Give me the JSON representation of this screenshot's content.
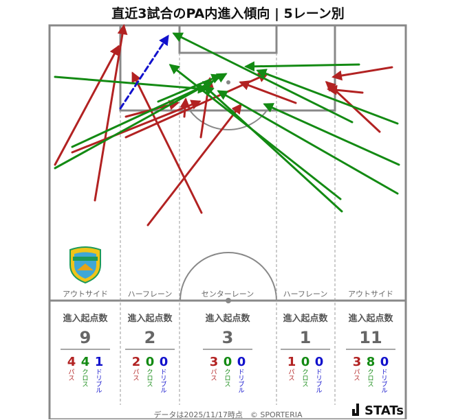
{
  "title": "直近3試合のPA内進入傾向 | 5レーン別",
  "colors": {
    "pass": "#b22222",
    "cross": "#138a13",
    "dribble": "#1111cc"
  },
  "lanes": [
    {
      "name": "アウトサイド",
      "label": "進入起点数",
      "total": "9",
      "pass": "4",
      "cross": "4",
      "dribble": "1"
    },
    {
      "name": "ハーフレーン",
      "label": "進入起点数",
      "total": "2",
      "pass": "2",
      "cross": "0",
      "dribble": "0"
    },
    {
      "name": "センターレーン",
      "label": "進入起点数",
      "total": "3",
      "pass": "3",
      "cross": "0",
      "dribble": "0"
    },
    {
      "name": "ハーフレーン",
      "label": "進入起点数",
      "total": "1",
      "pass": "1",
      "cross": "0",
      "dribble": "0"
    },
    {
      "name": "アウトサイド",
      "label": "進入起点数",
      "total": "11",
      "pass": "3",
      "cross": "8",
      "dribble": "0"
    }
  ],
  "type_labels": {
    "pass": "パス",
    "cross": "クロス",
    "dribble": "ドリブル"
  },
  "chart_data": {
    "type": "scatter",
    "title": "直近3試合のPA内進入傾向 | 5レーン別",
    "arrows": [
      {
        "kind": "pass",
        "from": [
          138,
          292
        ],
        "to": [
          180,
          38
        ]
      },
      {
        "kind": "pass",
        "from": [
          80,
          240
        ],
        "to": [
          172,
          68
        ]
      },
      {
        "kind": "pass",
        "from": [
          105,
          222
        ],
        "to": [
          290,
          148
        ]
      },
      {
        "kind": "pass",
        "from": [
          183,
          170
        ],
        "to": [
          258,
          150
        ]
      },
      {
        "kind": "pass",
        "from": [
          293,
          310
        ],
        "to": [
          193,
          107
        ]
      },
      {
        "kind": "pass",
        "from": [
          215,
          328
        ],
        "to": [
          350,
          153
        ]
      },
      {
        "kind": "pass",
        "from": [
          183,
          200
        ],
        "to": [
          388,
          108
        ]
      },
      {
        "kind": "pass",
        "from": [
          292,
          200
        ],
        "to": [
          305,
          115
        ]
      },
      {
        "kind": "pass",
        "from": [
          268,
          170
        ],
        "to": [
          270,
          145
        ]
      },
      {
        "kind": "pass",
        "from": [
          430,
          150
        ],
        "to": [
          350,
          120
        ]
      },
      {
        "kind": "pass",
        "from": [
          552,
          192
        ],
        "to": [
          475,
          120
        ]
      },
      {
        "kind": "pass",
        "from": [
          527,
          135
        ],
        "to": [
          478,
          130
        ]
      },
      {
        "kind": "pass",
        "from": [
          570,
          98
        ],
        "to": [
          485,
          112
        ]
      },
      {
        "kind": "cross",
        "from": [
          80,
          245
        ],
        "to": [
          328,
          108
        ]
      },
      {
        "kind": "cross",
        "from": [
          105,
          214
        ],
        "to": [
          308,
          120
        ]
      },
      {
        "kind": "cross",
        "from": [
          80,
          112
        ],
        "to": [
          300,
          130
        ]
      },
      {
        "kind": "cross",
        "from": [
          497,
          308
        ],
        "to": [
          298,
          126
        ]
      },
      {
        "kind": "cross",
        "from": [
          578,
          282
        ],
        "to": [
          318,
          133
        ]
      },
      {
        "kind": "cross",
        "from": [
          580,
          240
        ],
        "to": [
          385,
          152
        ]
      },
      {
        "kind": "cross",
        "from": [
          522,
          94
        ],
        "to": [
          358,
          97
        ]
      },
      {
        "kind": "cross",
        "from": [
          578,
          180
        ],
        "to": [
          375,
          103
        ]
      },
      {
        "kind": "cross",
        "from": [
          512,
          178
        ],
        "to": [
          253,
          49
        ]
      },
      {
        "kind": "cross",
        "from": [
          495,
          290
        ],
        "to": [
          248,
          95
        ]
      },
      {
        "kind": "cross",
        "from": [
          230,
          148
        ],
        "to": [
          320,
          110
        ]
      },
      {
        "kind": "dribble",
        "from": [
          175,
          158
        ],
        "to": [
          244,
          53
        ]
      }
    ]
  },
  "footer": "データは2025/11/17時点　© SPORTERIA",
  "brand": "STATs"
}
